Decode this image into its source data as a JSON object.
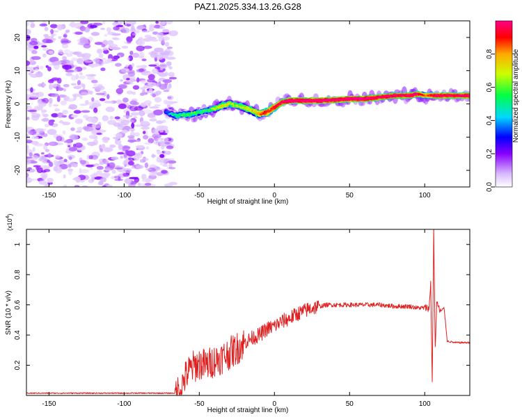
{
  "title": "PAZ1.2025.334.13.26.G28",
  "chart_data": [
    {
      "type": "heatmap",
      "name": "spectrogram",
      "xlabel": "Height of straight line (km)",
      "ylabel": "Frequency (Hz)",
      "xlim": [
        -165,
        130
      ],
      "ylim": [
        -25,
        25
      ],
      "xticks": [
        -150,
        -100,
        -50,
        0,
        50,
        100
      ],
      "yticks": [
        -20,
        -10,
        0,
        10,
        20
      ],
      "colorbar": {
        "label": "Normalized spectral amplitude",
        "range": [
          0,
          1
        ],
        "ticks": [
          0.0,
          0.2,
          0.4,
          0.6,
          0.8
        ],
        "colormap": [
          "#ffffff",
          "#d8b8ff",
          "#8800ff",
          "#0000ff",
          "#00d8ff",
          "#00ff44",
          "#ccff00",
          "#ffaa00",
          "#ff0000",
          "#ff0088"
        ]
      },
      "noise_region_x": [
        -165,
        -70
      ],
      "signal_track": {
        "x": [
          -72,
          -65,
          -55,
          -45,
          -40,
          -35,
          -30,
          -25,
          -20,
          -15,
          -10,
          -5,
          0,
          5,
          10,
          20,
          30,
          40,
          50,
          60,
          70,
          80,
          90,
          95,
          100,
          105,
          110,
          120,
          130
        ],
        "freq": [
          -2.5,
          -3.5,
          -3,
          -2,
          -1.5,
          -0.5,
          0,
          -0.5,
          -1,
          -2,
          -3,
          -2.5,
          -1,
          0.5,
          1,
          1,
          1,
          1.2,
          1.5,
          1.5,
          2,
          2.5,
          2.5,
          3,
          2.5,
          2.5,
          2.5,
          2.5,
          2.5
        ],
        "amplitude": [
          0.3,
          0.45,
          0.5,
          0.45,
          0.55,
          0.6,
          0.6,
          0.55,
          0.6,
          0.65,
          0.75,
          0.8,
          0.85,
          0.9,
          0.95,
          0.95,
          0.95,
          0.95,
          0.95,
          0.95,
          0.9,
          0.9,
          0.9,
          0.9,
          0.75,
          0.85,
          0.9,
          0.9,
          0.9
        ]
      }
    },
    {
      "type": "line",
      "name": "snr",
      "xlabel": "Height of straight line (km)",
      "ylabel": "SNR (10 * v/v)",
      "scale_label": "(x10",
      "scale_exponent": "4",
      "xlim": [
        -165,
        130
      ],
      "ylim": [
        0,
        1.1
      ],
      "xticks": [
        -150,
        -100,
        -50,
        0,
        50,
        100
      ],
      "yticks": [
        0.2,
        0.4,
        0.6,
        0.8,
        1
      ],
      "color": "#e02020",
      "series": [
        {
          "name": "SNR",
          "x": [
            -165,
            -130,
            -100,
            -80,
            -66,
            -62,
            -60,
            -57,
            -54,
            -50,
            -45,
            -40,
            -35,
            -30,
            -25,
            -20,
            -15,
            -10,
            -5,
            0,
            5,
            10,
            15,
            20,
            25,
            30,
            35,
            40,
            50,
            60,
            70,
            80,
            90,
            95,
            100,
            103,
            104,
            105,
            106,
            107,
            108,
            110,
            112,
            113,
            115,
            120,
            125,
            130
          ],
          "y": [
            0.015,
            0.015,
            0.015,
            0.015,
            0.015,
            0.05,
            0.11,
            0.16,
            0.19,
            0.21,
            0.2,
            0.23,
            0.25,
            0.28,
            0.31,
            0.35,
            0.38,
            0.4,
            0.44,
            0.46,
            0.49,
            0.51,
            0.54,
            0.56,
            0.58,
            0.59,
            0.6,
            0.6,
            0.6,
            0.6,
            0.6,
            0.59,
            0.59,
            0.58,
            0.58,
            0.58,
            0.75,
            0.08,
            1.1,
            0.3,
            0.62,
            0.56,
            0.56,
            0.57,
            0.36,
            0.35,
            0.35,
            0.35
          ]
        }
      ]
    }
  ]
}
